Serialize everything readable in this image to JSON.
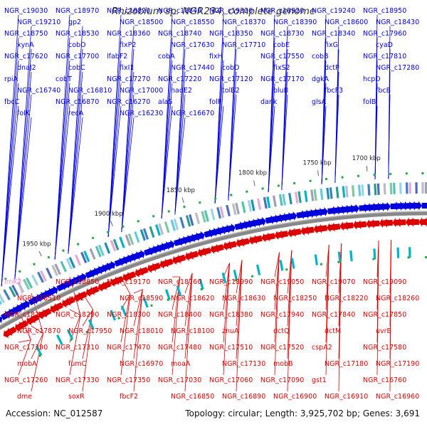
{
  "title": "Rhizobium sp. NGR234, complete genome",
  "footer": {
    "accession": "Accession: NC_012587",
    "summary": "Topology: circular; Length: 3,925,702 bp; Genes: 3,691"
  },
  "colors": {
    "forward_strand": "#0000dd",
    "reverse_strand": "#dd0000",
    "rna_gene": "#ee88cc",
    "backbone": "#888888",
    "ncrna_marker": "#22aa44"
  },
  "ticks": [
    "1700 kbp",
    "1750 kbp",
    "1800 kbp",
    "1850 kbp",
    "1900 kbp",
    "1950 kbp"
  ],
  "forward_genes": [
    "NGR_c19030",
    "NGR_c18970",
    "NGR_c18820",
    "NGR_c18840",
    "NGR_c19320",
    "NGR_c18920",
    "NGR_c19240",
    "NGR_c18950",
    "NGR_c19210",
    "gp2",
    "NGR_c18500",
    "NGR_c18550",
    "NGR_c18370",
    "NGR_c18390",
    "NGR_c18600",
    "NGR_c18430",
    "NGR_c18750",
    "NGR_c18530",
    "NGR_c18360",
    "NGR_c18740",
    "NGR_c18350",
    "NGR_c18730",
    "NGR_c18340",
    "NGR_c17960",
    "xynA",
    "cobO",
    "fixP2",
    "NGR_c17630",
    "NGR_c17710",
    "cobE",
    "fixG",
    "cyaD",
    "NGR_c17620",
    "NGR_c17700",
    "lfabF2",
    "cobA",
    "fixH",
    "NGR_c17550",
    "cobB",
    "NGR_c17810",
    "dnaJ2",
    "cobC",
    "fixI1",
    "NGR_c17440",
    "cobD",
    "fixS2",
    "dctP",
    "NGR_c17280",
    "rpiA",
    "cobT",
    "NGR_c17270",
    "NGR_c17220",
    "NGR_c17120",
    "NGR_c17170",
    "dgkA",
    "hcpD",
    "NGR_c16740",
    "NGR_c16810",
    "NGR_c17000",
    "nadE2",
    "tolB2",
    "bluB",
    "fbcF3",
    "fbcB",
    "fbcC",
    "NGR_c16870",
    "NGR_c16270",
    "alaS",
    "folP",
    "dank",
    "glsA",
    "folB",
    "folK",
    "recA",
    "NGR_c16230",
    "NGR_c16670"
  ],
  "reverse_genes": [
    "lrnK2",
    "NGR_c18850",
    "NGR_c19170",
    "NGR_c18760",
    "NGR_c18990",
    "NGR_c19050",
    "NGR_c19070",
    "NGR_c19090",
    "NGR_c18510",
    "cya2",
    "NGR_c18590",
    "NGR_c18620",
    "NGR_c18630",
    "NGR_c18250",
    "NGR_c18220",
    "NGR_c18260",
    "NGR_c18280",
    "NGR_c18290",
    "NGR_c18300",
    "NGR_c18400",
    "NGR_c18380",
    "NGR_c17940",
    "NGR_c17840",
    "NGR_c17850",
    "NGR_c17870",
    "NGR_c17950",
    "NGR_c18010",
    "NGR_c18100",
    "znuA",
    "dctQ",
    "dctM",
    "uvrB",
    "NGR_c17390",
    "NGR_c17310",
    "NGR_c17470",
    "NGR_c17480",
    "NGR_c17510",
    "NGR_c17520",
    "cspA2",
    "NGR_c17580",
    "mobA",
    "fumC",
    "NGR_c16970",
    "moaA",
    "NGR_c17130",
    "mobB",
    "NGR_c17180",
    "NGR_c17190",
    "NGR_c17260",
    "NGR_c17330",
    "NGR_c17350",
    "NGR_c17030",
    "NGR_c17060",
    "NGR_c17090",
    "gst1",
    "NGR_c16760",
    "dme",
    "soxR",
    "fbcF2",
    "NGR_c16850",
    "NGR_c16890",
    "NGR_c16900",
    "NGR_c16910",
    "NGR_c16960"
  ]
}
